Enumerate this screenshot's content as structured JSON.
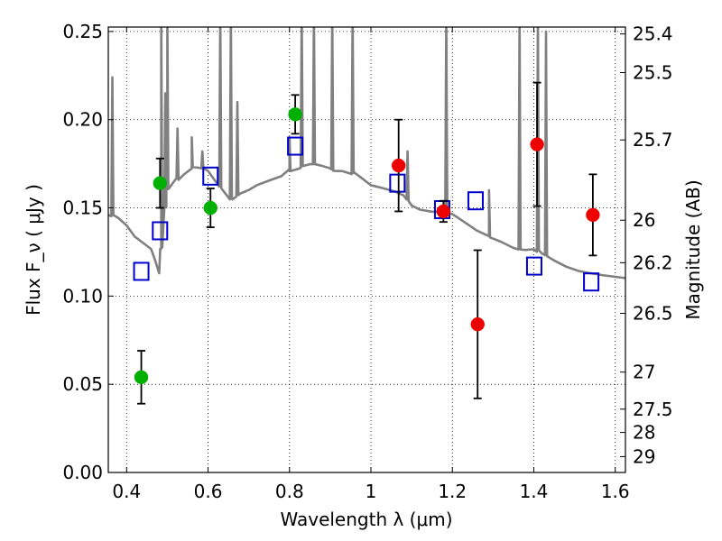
{
  "chart_data": {
    "type": "scatter",
    "title": "",
    "xlabel": "Wavelength  λ (μm)",
    "ylabel": "Flux  F_ν  ( μJy )",
    "ylabel_right": "Magnitude (AB)",
    "xlim": [
      0.355,
      1.625
    ],
    "ylim": [
      0.0,
      0.2525
    ],
    "grid": true,
    "x_ticks": [
      0.4,
      0.6,
      0.8,
      1.0,
      1.2,
      1.4,
      1.6
    ],
    "x_tick_labels": [
      "0.4",
      "0.6",
      "0.8",
      "1",
      "1.2",
      "1.4",
      "1.6"
    ],
    "y_ticks": [
      0.0,
      0.05,
      0.1,
      0.15,
      0.2,
      0.25
    ],
    "y_tick_labels": [
      "0.00",
      "0.05",
      "0.10",
      "0.15",
      "0.20",
      "0.25"
    ],
    "right_ticks": [
      {
        "label": "25.4",
        "flux": 0.2486
      },
      {
        "label": "25.5",
        "flux": 0.2267
      },
      {
        "label": "25.7",
        "flux": 0.1885
      },
      {
        "label": "26",
        "flux": 0.143
      },
      {
        "label": "26.2",
        "flux": 0.1189
      },
      {
        "label": "26.5",
        "flux": 0.0902
      },
      {
        "label": "27",
        "flux": 0.0569
      },
      {
        "label": "27.5",
        "flux": 0.0359
      },
      {
        "label": "28",
        "flux": 0.0227
      },
      {
        "label": "29",
        "flux": 0.009
      }
    ],
    "series": [
      {
        "name": "model spectrum",
        "kind": "line",
        "color": "#808080",
        "continuum": [
          [
            0.355,
            0.146
          ],
          [
            0.38,
            0.143
          ],
          [
            0.4,
            0.139
          ],
          [
            0.42,
            0.133
          ],
          [
            0.44,
            0.13
          ],
          [
            0.46,
            0.127
          ],
          [
            0.47,
            0.121
          ],
          [
            0.48,
            0.114
          ],
          [
            0.485,
            0.128
          ],
          [
            0.5,
            0.16
          ],
          [
            0.52,
            0.166
          ],
          [
            0.54,
            0.17
          ],
          [
            0.56,
            0.173
          ],
          [
            0.58,
            0.172
          ],
          [
            0.6,
            0.17
          ],
          [
            0.62,
            0.164
          ],
          [
            0.64,
            0.16
          ],
          [
            0.66,
            0.155
          ],
          [
            0.68,
            0.157
          ],
          [
            0.7,
            0.159
          ],
          [
            0.72,
            0.162
          ],
          [
            0.75,
            0.165
          ],
          [
            0.78,
            0.168
          ],
          [
            0.8,
            0.172
          ],
          [
            0.82,
            0.173
          ],
          [
            0.85,
            0.174
          ],
          [
            0.88,
            0.173
          ],
          [
            0.9,
            0.172
          ],
          [
            0.93,
            0.172
          ],
          [
            0.96,
            0.17
          ],
          [
            0.98,
            0.166
          ],
          [
            1.0,
            0.162
          ],
          [
            1.03,
            0.16
          ],
          [
            1.06,
            0.158
          ],
          [
            1.08,
            0.156
          ],
          [
            1.1,
            0.152
          ],
          [
            1.12,
            0.15
          ],
          [
            1.15,
            0.149
          ],
          [
            1.17,
            0.149
          ],
          [
            1.2,
            0.146
          ],
          [
            1.23,
            0.141
          ],
          [
            1.26,
            0.136
          ],
          [
            1.29,
            0.133
          ],
          [
            1.32,
            0.131
          ],
          [
            1.35,
            0.128
          ],
          [
            1.38,
            0.127
          ],
          [
            1.4,
            0.127
          ],
          [
            1.42,
            0.123
          ],
          [
            1.45,
            0.12
          ],
          [
            1.48,
            0.117
          ],
          [
            1.51,
            0.115
          ],
          [
            1.54,
            0.114
          ],
          [
            1.57,
            0.113
          ],
          [
            1.6,
            0.112
          ],
          [
            1.625,
            0.111
          ]
        ],
        "emission_lines": [
          [
            0.365,
            0.224
          ],
          [
            0.485,
            0.26
          ],
          [
            0.495,
            0.215
          ],
          [
            0.5,
            0.26
          ],
          [
            0.525,
            0.195
          ],
          [
            0.56,
            0.19
          ],
          [
            0.586,
            0.182
          ],
          [
            0.63,
            0.26
          ],
          [
            0.656,
            0.26
          ],
          [
            0.672,
            0.21
          ],
          [
            0.8,
            0.19
          ],
          [
            0.83,
            0.26
          ],
          [
            0.86,
            0.26
          ],
          [
            0.905,
            0.26
          ],
          [
            0.955,
            0.26
          ],
          [
            1.09,
            0.182
          ],
          [
            1.185,
            0.26
          ],
          [
            1.29,
            0.16
          ],
          [
            1.365,
            0.26
          ],
          [
            1.41,
            0.26
          ],
          [
            1.43,
            0.25
          ]
        ]
      },
      {
        "name": "blue open squares",
        "kind": "open-square",
        "color": "#0000cc",
        "points": [
          {
            "x": 0.436,
            "y": 0.114
          },
          {
            "x": 0.482,
            "y": 0.137
          },
          {
            "x": 0.606,
            "y": 0.168
          },
          {
            "x": 0.814,
            "y": 0.185
          },
          {
            "x": 1.065,
            "y": 0.164
          },
          {
            "x": 1.175,
            "y": 0.149
          },
          {
            "x": 1.257,
            "y": 0.154
          },
          {
            "x": 1.401,
            "y": 0.117
          },
          {
            "x": 1.541,
            "y": 0.108
          }
        ]
      },
      {
        "name": "green points",
        "kind": "filled-circle",
        "color": "#00b000",
        "points": [
          {
            "x": 0.436,
            "y": 0.054,
            "err": 0.015
          },
          {
            "x": 0.482,
            "y": 0.164,
            "err": 0.014
          },
          {
            "x": 0.606,
            "y": 0.15,
            "err": 0.011
          },
          {
            "x": 0.814,
            "y": 0.203,
            "err": 0.011
          }
        ]
      },
      {
        "name": "red points",
        "kind": "filled-circle",
        "color": "#ee0000",
        "points": [
          {
            "x": 1.068,
            "y": 0.174,
            "err": 0.026
          },
          {
            "x": 1.178,
            "y": 0.148,
            "err": 0.006
          },
          {
            "x": 1.262,
            "y": 0.084,
            "err": 0.042
          },
          {
            "x": 1.408,
            "y": 0.186,
            "err": 0.035
          },
          {
            "x": 1.545,
            "y": 0.146,
            "err": 0.023
          }
        ]
      }
    ]
  }
}
